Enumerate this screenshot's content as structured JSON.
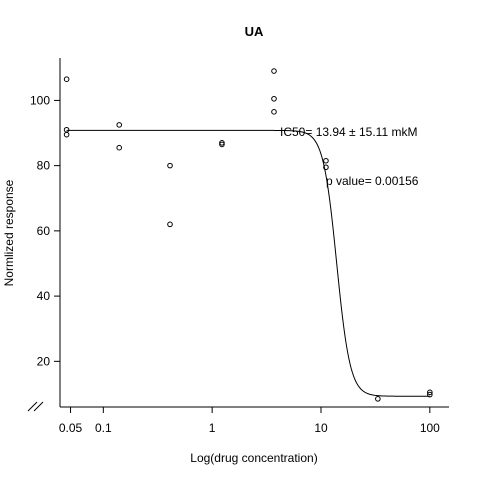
{
  "chart_data": {
    "type": "scatter",
    "title": "UA",
    "xlabel": "Log(drug concentration)",
    "ylabel": "Normlized response",
    "x_scale": "log",
    "x_ticks": [
      0.05,
      0.1,
      1,
      10,
      100
    ],
    "x_tick_labels": [
      "0.05",
      "0.1",
      "1",
      "10",
      "100"
    ],
    "y_ticks": [
      20,
      40,
      60,
      80,
      100
    ],
    "y_tick_labels": [
      "20",
      "40",
      "60",
      "80",
      "100"
    ],
    "xlim": [
      0.04,
      150
    ],
    "ylim": [
      6,
      113
    ],
    "axis_break": "//",
    "points": [
      {
        "x": 0.046,
        "y": 106.5
      },
      {
        "x": 0.046,
        "y": 91.0
      },
      {
        "x": 0.046,
        "y": 89.5
      },
      {
        "x": 0.14,
        "y": 92.5
      },
      {
        "x": 0.14,
        "y": 85.5
      },
      {
        "x": 0.41,
        "y": 80.0
      },
      {
        "x": 0.41,
        "y": 62.0
      },
      {
        "x": 1.23,
        "y": 87.0
      },
      {
        "x": 1.23,
        "y": 86.5
      },
      {
        "x": 3.7,
        "y": 109.0
      },
      {
        "x": 3.7,
        "y": 100.5
      },
      {
        "x": 3.7,
        "y": 96.5
      },
      {
        "x": 11.1,
        "y": 81.5
      },
      {
        "x": 11.1,
        "y": 79.5
      },
      {
        "x": 33.3,
        "y": 8.5
      },
      {
        "x": 100,
        "y": 10.5
      },
      {
        "x": 100,
        "y": 9.8
      }
    ],
    "fit": {
      "top": 90.8,
      "bottom": 9.3,
      "ic50": 13.94,
      "hill": 7
    },
    "annotations": {
      "ic50_text": "IC50= 13.94 ± 15.11 mkM",
      "pvalue_text": "p value= 0.00156"
    }
  }
}
